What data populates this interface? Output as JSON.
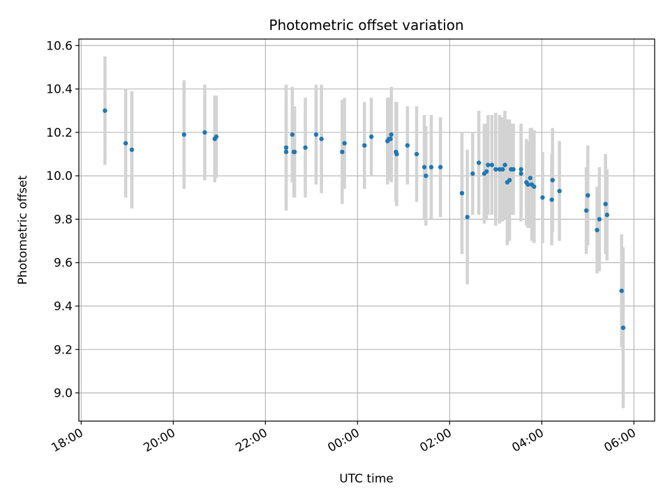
{
  "chart_data": {
    "type": "scatter",
    "title": "Photometric offset variation",
    "xlabel": "UTC time",
    "ylabel": "Photometric offset",
    "x_unit": "UTC date-time",
    "xlim": [
      "2000-01-01T17:57",
      "2000-01-02T06:27"
    ],
    "ylim": [
      8.87,
      10.63
    ],
    "xticks": [
      "2000-01-01T18:00",
      "2000-01-01T20:00",
      "2000-01-01T22:00",
      "2000-01-02T00:00",
      "2000-01-02T02:00",
      "2000-01-02T04:00",
      "2000-01-02T06:00"
    ],
    "xtick_labels": [
      "18:00",
      "20:00",
      "22:00",
      "00:00",
      "02:00",
      "04:00",
      "06:00"
    ],
    "yticks": [
      9.0,
      9.2,
      9.4,
      9.6,
      9.8,
      10.0,
      10.2,
      10.4,
      10.6
    ],
    "ytick_labels": [
      "9.0",
      "9.2",
      "9.4",
      "9.6",
      "9.8",
      "10.0",
      "10.2",
      "10.4",
      "10.6"
    ],
    "grid": true,
    "legend": "none",
    "marker_color": "#1f77b4",
    "errorbar_color": "#d3d3d3",
    "series": [
      {
        "x": [
          "2000-01-01T18:31",
          "2000-01-01T18:58",
          "2000-01-01T19:06",
          "2000-01-01T20:14",
          "2000-01-01T20:41",
          "2000-01-01T20:54",
          "2000-01-01T20:56",
          "2000-01-01T22:27",
          "2000-01-01T22:27",
          "2000-01-01T22:35",
          "2000-01-01T22:37",
          "2000-01-01T22:38",
          "2000-01-01T22:52",
          "2000-01-01T23:06",
          "2000-01-01T23:13",
          "2000-01-01T23:40",
          "2000-01-01T23:43",
          "2000-01-02T00:09",
          "2000-01-02T00:18",
          "2000-01-02T00:39",
          "2000-01-02T00:41",
          "2000-01-02T00:43",
          "2000-01-02T00:44",
          "2000-01-02T00:50",
          "2000-01-02T00:51",
          "2000-01-02T01:05",
          "2000-01-02T01:17",
          "2000-01-02T01:27",
          "2000-01-02T01:29",
          "2000-01-02T01:36",
          "2000-01-02T01:48",
          "2000-01-02T02:16",
          "2000-01-02T02:23",
          "2000-01-02T02:30",
          "2000-01-02T02:38",
          "2000-01-02T02:45",
          "2000-01-02T02:48",
          "2000-01-02T02:50",
          "2000-01-02T02:55",
          "2000-01-02T03:00",
          "2000-01-02T03:05",
          "2000-01-02T03:09",
          "2000-01-02T03:12",
          "2000-01-02T03:15",
          "2000-01-02T03:18",
          "2000-01-02T03:20",
          "2000-01-02T03:23",
          "2000-01-02T03:33",
          "2000-01-02T03:33",
          "2000-01-02T03:40",
          "2000-01-02T03:42",
          "2000-01-02T03:45",
          "2000-01-02T03:47",
          "2000-01-02T03:50",
          "2000-01-02T04:01",
          "2000-01-02T04:13",
          "2000-01-02T04:14",
          "2000-01-02T04:23",
          "2000-01-02T04:58",
          "2000-01-02T05:00",
          "2000-01-02T05:12",
          "2000-01-02T05:15",
          "2000-01-02T05:23",
          "2000-01-02T05:25",
          "2000-01-02T05:44",
          "2000-01-02T05:46"
        ],
        "y": [
          10.3,
          10.15,
          10.12,
          10.19,
          10.2,
          10.17,
          10.18,
          10.13,
          10.11,
          10.19,
          10.11,
          10.11,
          10.13,
          10.19,
          10.17,
          10.11,
          10.15,
          10.14,
          10.18,
          10.16,
          10.17,
          10.17,
          10.19,
          10.11,
          10.1,
          10.14,
          10.1,
          10.04,
          10.0,
          10.04,
          10.04,
          9.92,
          9.81,
          10.01,
          10.06,
          10.01,
          10.02,
          10.05,
          10.05,
          10.03,
          10.03,
          10.03,
          10.05,
          9.97,
          9.98,
          10.03,
          10.03,
          10.03,
          10.01,
          9.97,
          9.96,
          9.99,
          9.96,
          9.95,
          9.9,
          9.89,
          9.98,
          9.93,
          9.84,
          9.91,
          9.75,
          9.8,
          9.87,
          9.82,
          9.47,
          9.3
        ],
        "yerr": [
          0.25,
          0.25,
          0.27,
          0.25,
          0.22,
          0.2,
          0.19,
          0.29,
          0.23,
          0.22,
          0.21,
          0.21,
          0.23,
          0.23,
          0.25,
          0.24,
          0.21,
          0.2,
          0.18,
          0.2,
          0.19,
          0.17,
          0.22,
          0.23,
          0.24,
          0.18,
          0.22,
          0.24,
          0.23,
          0.24,
          0.23,
          0.28,
          0.31,
          0.19,
          0.24,
          0.23,
          0.22,
          0.23,
          0.23,
          0.26,
          0.25,
          0.24,
          0.25,
          0.29,
          0.28,
          0.21,
          0.21,
          0.21,
          0.22,
          0.2,
          0.2,
          0.23,
          0.26,
          0.26,
          0.21,
          0.21,
          0.24,
          0.23,
          0.2,
          0.23,
          0.2,
          0.24,
          0.23,
          0.21,
          0.26,
          0.37
        ]
      }
    ]
  }
}
